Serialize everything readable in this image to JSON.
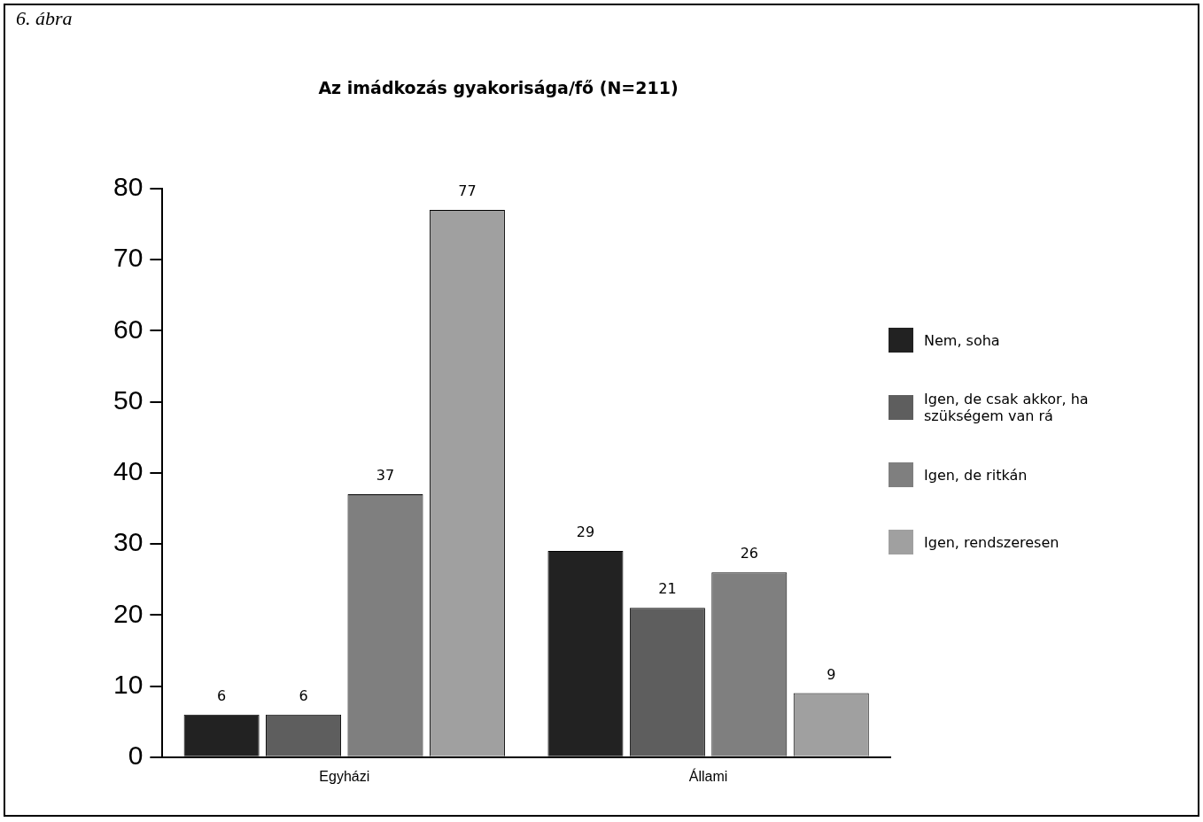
{
  "chart_data": {
    "type": "bar",
    "title": "Az imádkozás gyakorisága/fő (N=211)",
    "annotations": [
      "6. ábra"
    ],
    "categories": [
      "Egyházi",
      "Állami"
    ],
    "series": [
      {
        "name": "Nem, soha",
        "color": "#222222",
        "values": [
          6,
          29
        ]
      },
      {
        "name": "Igen, de csak akkor, ha szükségem van rá",
        "color": "#5e5e5e",
        "values": [
          6,
          21
        ]
      },
      {
        "name": "Igen, de ritkán",
        "color": "#7f7f7f",
        "values": [
          37,
          26
        ]
      },
      {
        "name": "Igen, rendszeresen",
        "color": "#a0a0a0",
        "values": [
          77,
          9
        ]
      }
    ],
    "ylim": [
      0,
      80
    ],
    "yticks": [
      0,
      10,
      20,
      30,
      40,
      50,
      60,
      70,
      80
    ],
    "grid": false,
    "legend": "right",
    "data_labels": true
  }
}
